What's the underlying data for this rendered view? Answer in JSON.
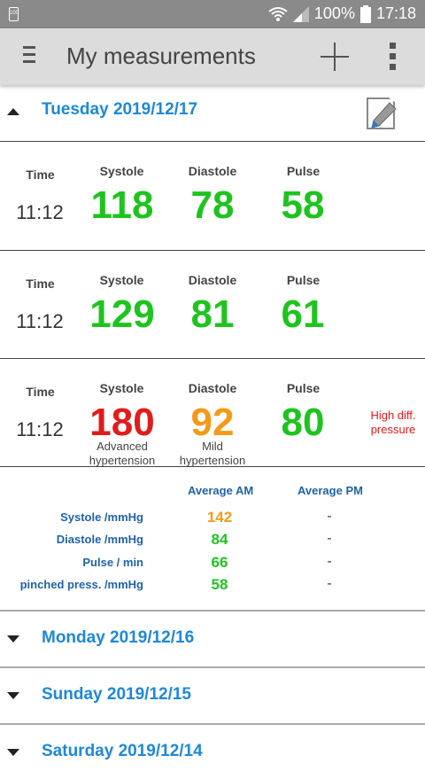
{
  "status_bar": {
    "battery_small": "100",
    "battery_pct": "100%",
    "time": "17:18"
  },
  "app_bar": {
    "title": "My measurements"
  },
  "labels": {
    "time": "Time",
    "systole": "Systole",
    "diastole": "Diastole",
    "pulse": "Pulse"
  },
  "expanded_day": {
    "label": "Tuesday 2019/12/17",
    "measurements": [
      {
        "time": "11:12",
        "systole": "118",
        "diastole": "78",
        "pulse": "58",
        "systole_note": "",
        "diastole_note": "",
        "note": ""
      },
      {
        "time": "11:12",
        "systole": "129",
        "diastole": "81",
        "pulse": "61",
        "systole_note": "",
        "diastole_note": "",
        "note": ""
      },
      {
        "time": "11:12",
        "systole": "180",
        "diastole": "92",
        "pulse": "80",
        "systole_note": "Advanced hypertension",
        "diastole_note": "Mild hypertension",
        "note": "High diff. pressure"
      }
    ],
    "averages": {
      "header_am": "Average AM",
      "header_pm": "Average PM",
      "rows": [
        {
          "label": "Systole /mmHg",
          "am": "142",
          "pm": "-"
        },
        {
          "label": "Diastole /mmHg",
          "am": "84",
          "pm": "-"
        },
        {
          "label": "Pulse / min",
          "am": "66",
          "pm": "-"
        },
        {
          "label": "pinched press. /mmHg",
          "am": "58",
          "pm": "-"
        }
      ]
    }
  },
  "collapsed_days": [
    "Monday 2019/12/16",
    "Sunday 2019/12/15",
    "Saturday 2019/12/14"
  ],
  "colors": {
    "accent": "#1e88d8",
    "normal": "#1ec41e",
    "advanced": "#e31b1b",
    "mild": "#f59a17",
    "label_blue": "#2063a8"
  }
}
